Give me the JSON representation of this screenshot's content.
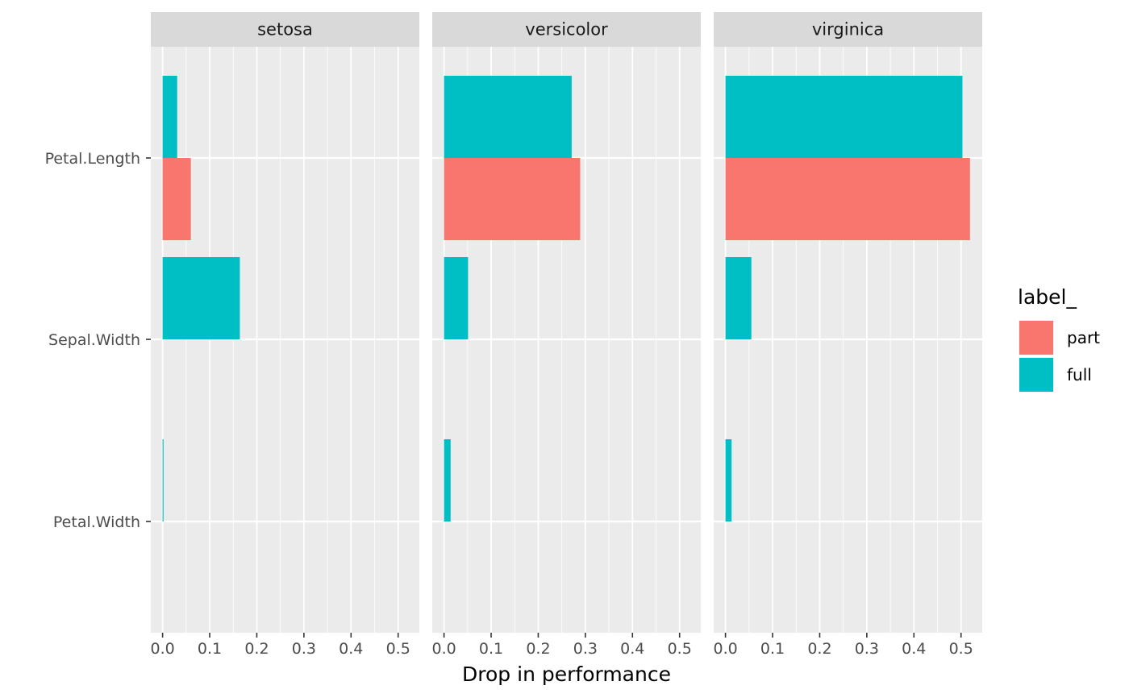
{
  "chart_data": {
    "type": "bar",
    "orientation": "horizontal",
    "facets": [
      "setosa",
      "versicolor",
      "virginica"
    ],
    "categories": [
      "Petal.Length",
      "Sepal.Width",
      "Petal.Width"
    ],
    "x_ticks": [
      "0.0",
      "0.1",
      "0.2",
      "0.3",
      "0.4",
      "0.5"
    ],
    "xlim": [
      -0.025,
      0.545
    ],
    "xlabel": "Drop in performance",
    "ylabel": "",
    "grid": true,
    "legend": {
      "title": "label_",
      "placement": "right",
      "entries": [
        {
          "name": "part",
          "color": "#F8766D"
        },
        {
          "name": "full",
          "color": "#00BFC4"
        }
      ]
    },
    "series": [
      {
        "name": "full",
        "color": "#00BFC4",
        "values": {
          "setosa": {
            "Petal.Length": 0.031,
            "Sepal.Width": 0.164,
            "Petal.Width": 0.002
          },
          "versicolor": {
            "Petal.Length": 0.271,
            "Sepal.Width": 0.051,
            "Petal.Width": 0.014
          },
          "virginica": {
            "Petal.Length": 0.503,
            "Sepal.Width": 0.055,
            "Petal.Width": 0.013
          }
        }
      },
      {
        "name": "part",
        "color": "#F8766D",
        "values": {
          "setosa": {
            "Petal.Length": 0.06
          },
          "versicolor": {
            "Petal.Length": 0.289
          },
          "virginica": {
            "Petal.Length": 0.519
          }
        }
      }
    ]
  }
}
